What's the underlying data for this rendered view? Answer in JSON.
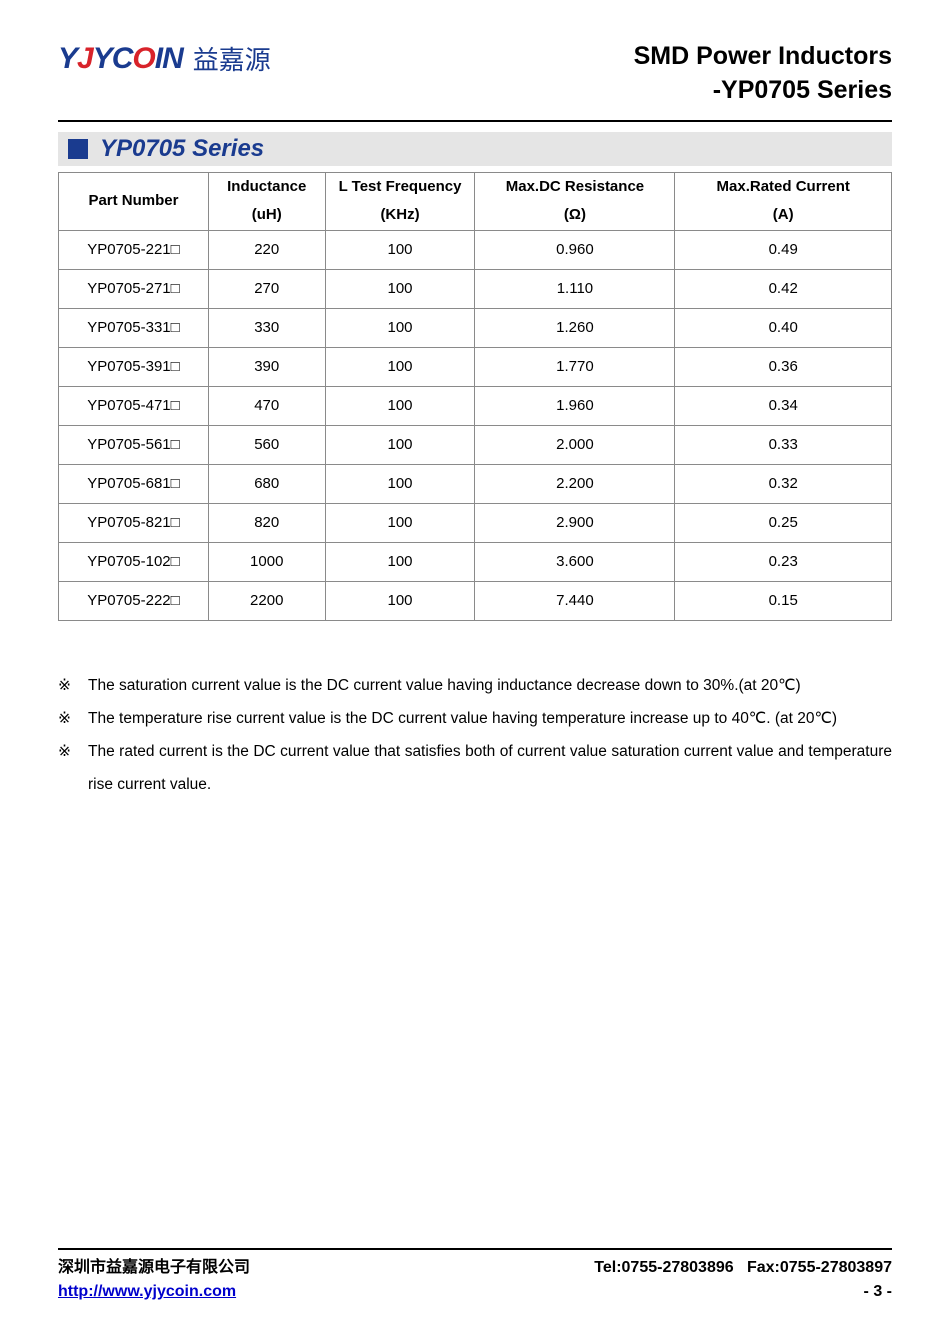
{
  "logo": {
    "mark_parts": [
      {
        "text": "Y",
        "cls": "blue"
      },
      {
        "text": "J",
        "cls": "red"
      },
      {
        "text": "Y",
        "cls": "blue"
      },
      {
        "text": "C",
        "cls": "blue"
      },
      {
        "text": "O",
        "cls": "red"
      },
      {
        "text": "I",
        "cls": "blue"
      },
      {
        "text": "N",
        "cls": "blue"
      }
    ],
    "cn": "益嘉源"
  },
  "header": {
    "title_line1": "SMD Power Inductors",
    "title_line2": "-YP0705 Series"
  },
  "section": {
    "title": "YP0705 Series"
  },
  "table": {
    "columns": [
      {
        "key": "part",
        "label": "Part Number",
        "unit": "",
        "cls": "part-col"
      },
      {
        "key": "inductance",
        "label": "Inductance",
        "unit": "(uH)",
        "cls": "ind-col"
      },
      {
        "key": "freq",
        "label": "L Test Frequency",
        "unit": "(KHz)",
        "cls": "freq-col"
      },
      {
        "key": "dcr",
        "label": "Max.DC Resistance",
        "unit": "(Ω)",
        "cls": "dcr-col"
      },
      {
        "key": "current",
        "label": "Max.Rated Current",
        "unit": "(A)",
        "cls": "cur-col"
      }
    ],
    "rows": [
      {
        "part": "YP0705-221□",
        "inductance": "220",
        "freq": "100",
        "dcr": "0.960",
        "current": "0.49"
      },
      {
        "part": "YP0705-271□",
        "inductance": "270",
        "freq": "100",
        "dcr": "1.110",
        "current": "0.42"
      },
      {
        "part": "YP0705-331□",
        "inductance": "330",
        "freq": "100",
        "dcr": "1.260",
        "current": "0.40"
      },
      {
        "part": "YP0705-391□",
        "inductance": "390",
        "freq": "100",
        "dcr": "1.770",
        "current": "0.36"
      },
      {
        "part": "YP0705-471□",
        "inductance": "470",
        "freq": "100",
        "dcr": "1.960",
        "current": "0.34"
      },
      {
        "part": "YP0705-561□",
        "inductance": "560",
        "freq": "100",
        "dcr": "2.000",
        "current": "0.33"
      },
      {
        "part": "YP0705-681□",
        "inductance": "680",
        "freq": "100",
        "dcr": "2.200",
        "current": "0.32"
      },
      {
        "part": "YP0705-821□",
        "inductance": "820",
        "freq": "100",
        "dcr": "2.900",
        "current": "0.25"
      },
      {
        "part": "YP0705-102□",
        "inductance": "1000",
        "freq": "100",
        "dcr": "3.600",
        "current": "0.23"
      },
      {
        "part": "YP0705-222□",
        "inductance": "2200",
        "freq": "100",
        "dcr": "7.440",
        "current": "0.15"
      }
    ]
  },
  "notes": {
    "marker": "※",
    "items": [
      "The saturation current value is the DC current value having inductance decrease down to 30%.(at 20℃)",
      "The temperature rise current value is the DC current value having temperature increase up to 40℃. (at 20℃)",
      "The rated current is the DC current value that satisfies both of current value saturation current value and temperature rise current value."
    ]
  },
  "footer": {
    "company": "深圳市益嘉源电子有限公司",
    "tel": "Tel:0755-27803896",
    "fax": "Fax:0755-27803897",
    "url": "http://www.yjycoin.com",
    "page": "- 3 -"
  }
}
